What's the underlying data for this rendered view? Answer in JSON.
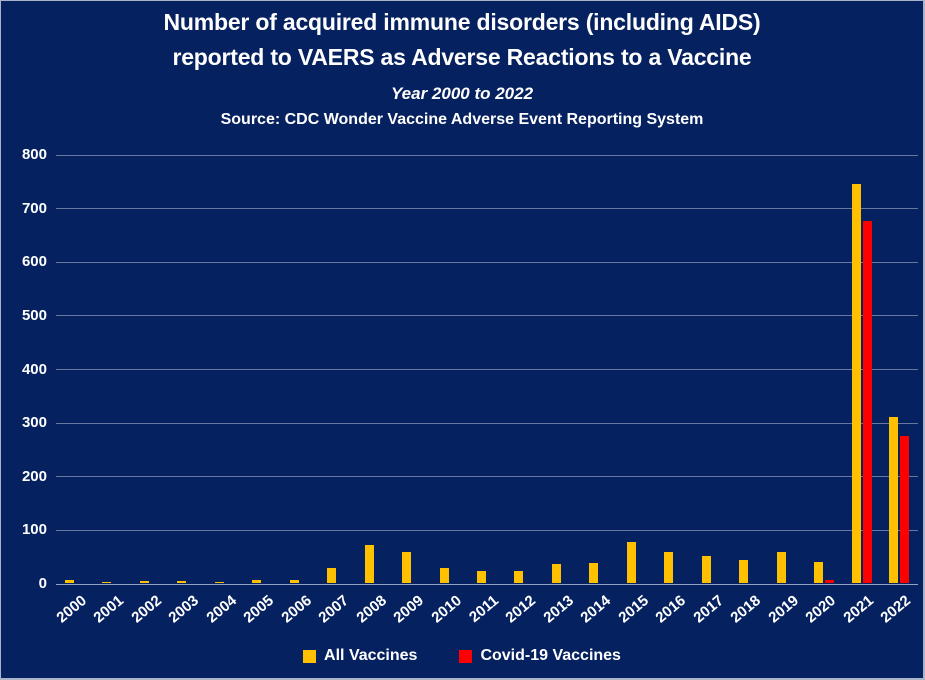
{
  "colors": {
    "background": "#06215f",
    "gridline": "#68779f",
    "axis_line": "#93a2c6",
    "text": "#ffffff",
    "all_vaccines": "#ffc000",
    "covid_vaccines": "#ff0000"
  },
  "title": {
    "line1": "Number of acquired immune disorders (including AIDS)",
    "line2": "reported to VAERS as Adverse Reactions to a Vaccine",
    "subtitle": "Year 2000 to 2022",
    "source": "Source: CDC Wonder Vaccine Adverse Event Reporting System"
  },
  "chart_data": {
    "type": "bar",
    "title": "Number of acquired immune disorders (including AIDS) reported to VAERS as Adverse Reactions to a Vaccine, Year 2000 to 2022",
    "categories": [
      "2000",
      "2001",
      "2002",
      "2003",
      "2004",
      "2005",
      "2006",
      "2007",
      "2008",
      "2009",
      "2010",
      "2011",
      "2012",
      "2013",
      "2014",
      "2015",
      "2016",
      "2017",
      "2018",
      "2019",
      "2020",
      "2021",
      "2022"
    ],
    "series": [
      {
        "name": "All Vaccines",
        "color": "#ffc000",
        "values": [
          5,
          1,
          3,
          3,
          2,
          5,
          6,
          28,
          70,
          57,
          28,
          22,
          22,
          35,
          38,
          76,
          58,
          51,
          43,
          58,
          40,
          745,
          310
        ]
      },
      {
        "name": "Covid-19 Vaccines",
        "color": "#ff0000",
        "values": [
          0,
          0,
          0,
          0,
          0,
          0,
          0,
          0,
          0,
          0,
          0,
          0,
          0,
          0,
          0,
          0,
          0,
          0,
          0,
          0,
          5,
          675,
          275
        ]
      }
    ],
    "xlabel": "",
    "ylabel": "",
    "ylim": [
      0,
      800
    ],
    "ytick_step": 100,
    "grid": true,
    "legend_position": "bottom"
  }
}
